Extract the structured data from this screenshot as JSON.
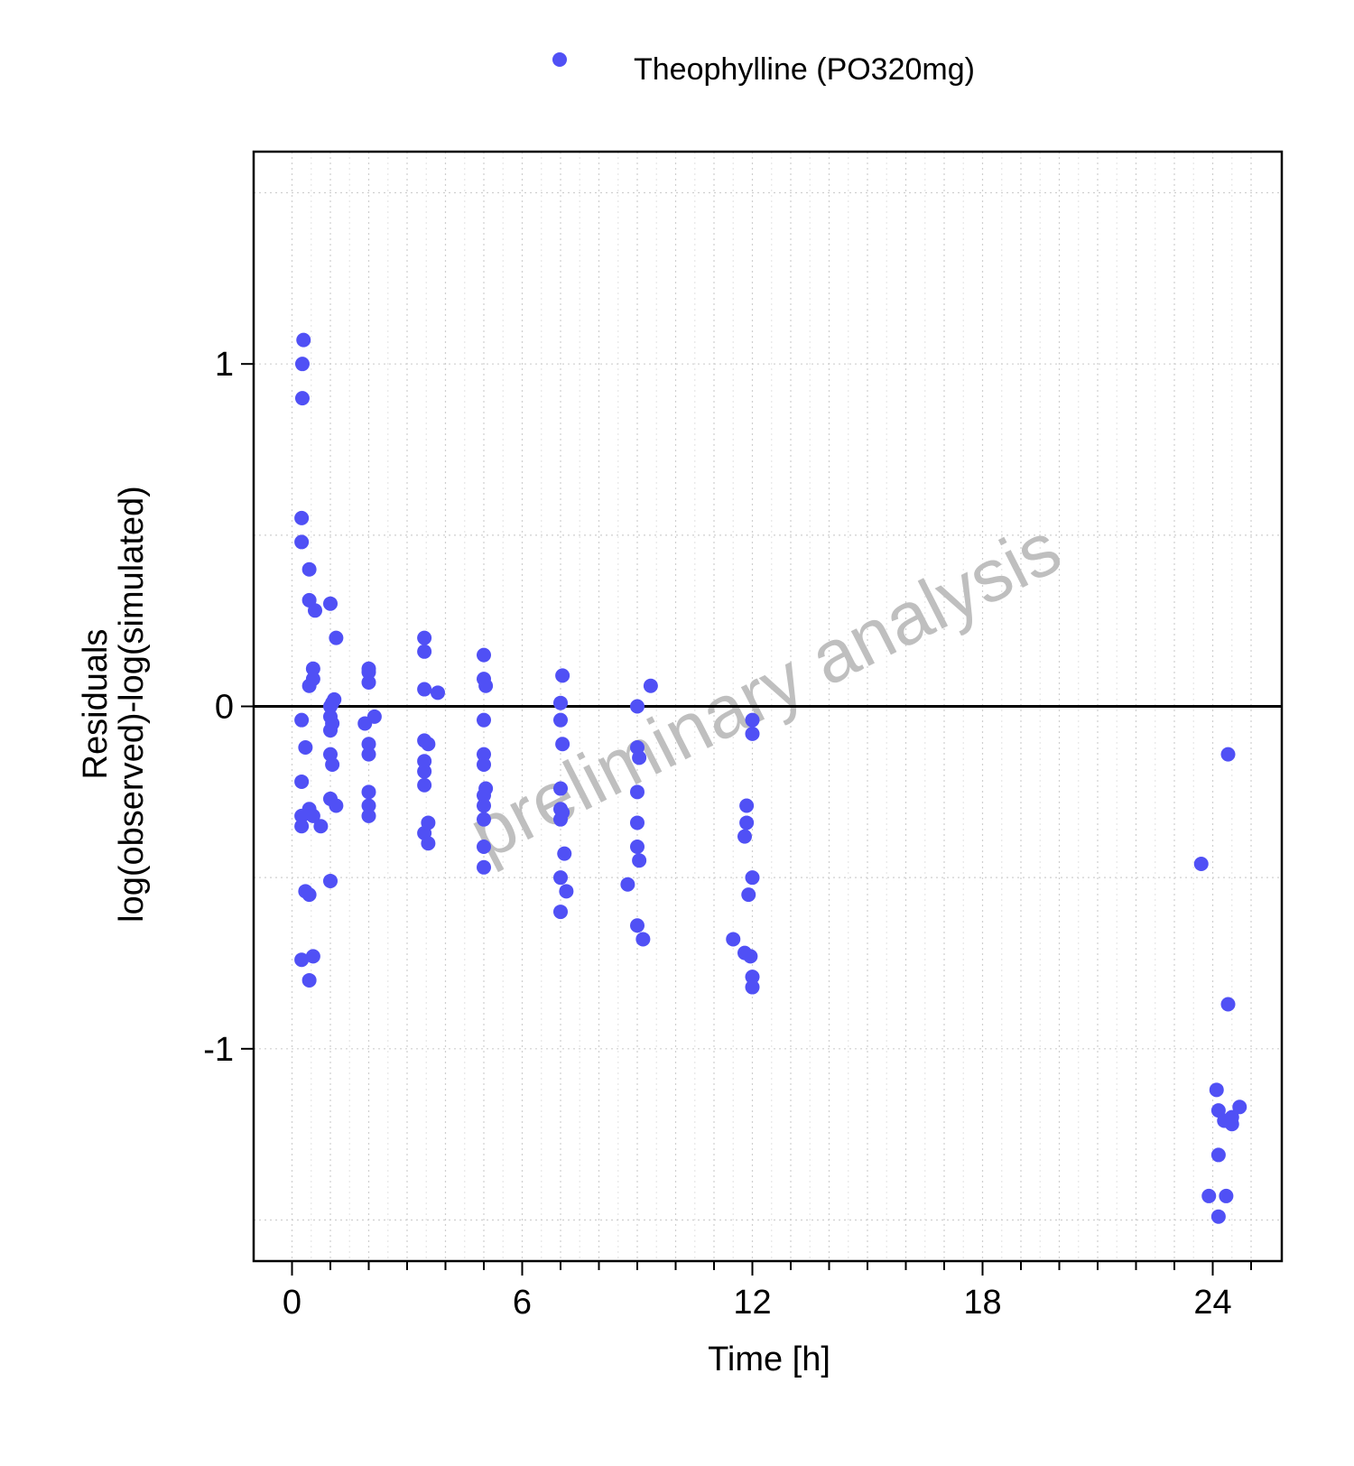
{
  "chart_data": {
    "type": "scatter",
    "xlabel": "Time [h]",
    "ylabel_line1": "Residuals",
    "ylabel_line2": "log(observed)-log(simulated)",
    "xlim": [
      -1,
      25.8
    ],
    "ylim": [
      -1.62,
      1.62
    ],
    "xticks": [
      0,
      6,
      12,
      18,
      24
    ],
    "yticks": [
      -1,
      0,
      1
    ],
    "grid": true,
    "reference_line_y": 0,
    "legend_position": "top-center",
    "watermark": "preliminary analysis",
    "colors": {
      "points": "#5050f5",
      "watermark": "#bfbfbf",
      "axis": "#000000"
    },
    "series": [
      {
        "name": "Theophylline (PO320mg)",
        "points": [
          [
            0.25,
            0.55
          ],
          [
            0.25,
            0.48
          ],
          [
            0.25,
            -0.04
          ],
          [
            0.25,
            -0.22
          ],
          [
            0.25,
            -0.32
          ],
          [
            0.25,
            -0.35
          ],
          [
            0.25,
            -0.74
          ],
          [
            0.27,
            1.0
          ],
          [
            0.27,
            0.9
          ],
          [
            0.3,
            1.07
          ],
          [
            0.35,
            -0.12
          ],
          [
            0.35,
            -0.54
          ],
          [
            0.45,
            0.4
          ],
          [
            0.45,
            0.31
          ],
          [
            0.45,
            0.06
          ],
          [
            0.45,
            -0.3
          ],
          [
            0.45,
            -0.55
          ],
          [
            0.45,
            -0.8
          ],
          [
            0.55,
            0.11
          ],
          [
            0.55,
            0.08
          ],
          [
            0.55,
            -0.32
          ],
          [
            0.55,
            -0.73
          ],
          [
            0.6,
            0.28
          ],
          [
            0.75,
            -0.35
          ],
          [
            1.0,
            0.3
          ],
          [
            1.0,
            0.0
          ],
          [
            1.0,
            -0.03
          ],
          [
            1.0,
            -0.07
          ],
          [
            1.0,
            -0.14
          ],
          [
            1.0,
            -0.27
          ],
          [
            1.0,
            -0.51
          ],
          [
            1.05,
            0.01
          ],
          [
            1.05,
            -0.05
          ],
          [
            1.05,
            -0.17
          ],
          [
            1.1,
            0.02
          ],
          [
            1.15,
            0.2
          ],
          [
            1.15,
            -0.29
          ],
          [
            1.9,
            -0.05
          ],
          [
            2.0,
            0.11
          ],
          [
            2.0,
            0.1
          ],
          [
            2.0,
            0.07
          ],
          [
            2.0,
            -0.11
          ],
          [
            2.0,
            -0.14
          ],
          [
            2.0,
            -0.25
          ],
          [
            2.0,
            -0.29
          ],
          [
            2.0,
            -0.32
          ],
          [
            2.15,
            -0.03
          ],
          [
            3.45,
            0.2
          ],
          [
            3.45,
            0.16
          ],
          [
            3.45,
            0.05
          ],
          [
            3.45,
            -0.1
          ],
          [
            3.45,
            -0.16
          ],
          [
            3.45,
            -0.19
          ],
          [
            3.45,
            -0.23
          ],
          [
            3.45,
            -0.37
          ],
          [
            3.55,
            -0.11
          ],
          [
            3.55,
            -0.34
          ],
          [
            3.55,
            -0.4
          ],
          [
            3.8,
            0.04
          ],
          [
            5.0,
            0.15
          ],
          [
            5.0,
            0.08
          ],
          [
            5.0,
            -0.04
          ],
          [
            5.0,
            -0.14
          ],
          [
            5.0,
            -0.17
          ],
          [
            5.0,
            -0.26
          ],
          [
            5.0,
            -0.29
          ],
          [
            5.0,
            -0.33
          ],
          [
            5.0,
            -0.41
          ],
          [
            5.0,
            -0.47
          ],
          [
            5.05,
            0.06
          ],
          [
            5.05,
            -0.24
          ],
          [
            7.0,
            0.01
          ],
          [
            7.0,
            -0.04
          ],
          [
            7.0,
            -0.24
          ],
          [
            7.0,
            -0.3
          ],
          [
            7.0,
            -0.33
          ],
          [
            7.0,
            -0.5
          ],
          [
            7.0,
            -0.6
          ],
          [
            7.05,
            0.09
          ],
          [
            7.05,
            -0.11
          ],
          [
            7.05,
            -0.31
          ],
          [
            7.1,
            -0.43
          ],
          [
            7.15,
            -0.54
          ],
          [
            8.75,
            -0.52
          ],
          [
            9.0,
            0.0
          ],
          [
            9.0,
            -0.12
          ],
          [
            9.0,
            -0.25
          ],
          [
            9.0,
            -0.34
          ],
          [
            9.0,
            -0.41
          ],
          [
            9.0,
            -0.64
          ],
          [
            9.05,
            -0.15
          ],
          [
            9.05,
            -0.45
          ],
          [
            9.15,
            -0.68
          ],
          [
            9.35,
            0.06
          ],
          [
            11.5,
            -0.68
          ],
          [
            11.8,
            -0.38
          ],
          [
            11.8,
            -0.72
          ],
          [
            11.85,
            -0.34
          ],
          [
            11.85,
            -0.29
          ],
          [
            11.9,
            -0.55
          ],
          [
            11.95,
            -0.73
          ],
          [
            12.0,
            -0.04
          ],
          [
            12.0,
            -0.08
          ],
          [
            12.0,
            -0.5
          ],
          [
            12.0,
            -0.79
          ],
          [
            12.0,
            -0.82
          ],
          [
            23.7,
            -0.46
          ],
          [
            23.9,
            -1.43
          ],
          [
            24.1,
            -1.12
          ],
          [
            24.15,
            -1.49
          ],
          [
            24.15,
            -1.31
          ],
          [
            24.15,
            -1.18
          ],
          [
            24.3,
            -1.21
          ],
          [
            24.35,
            -1.43
          ],
          [
            24.4,
            -0.14
          ],
          [
            24.4,
            -0.87
          ],
          [
            24.5,
            -1.2
          ],
          [
            24.5,
            -1.22
          ],
          [
            24.7,
            -1.17
          ]
        ]
      }
    ]
  }
}
